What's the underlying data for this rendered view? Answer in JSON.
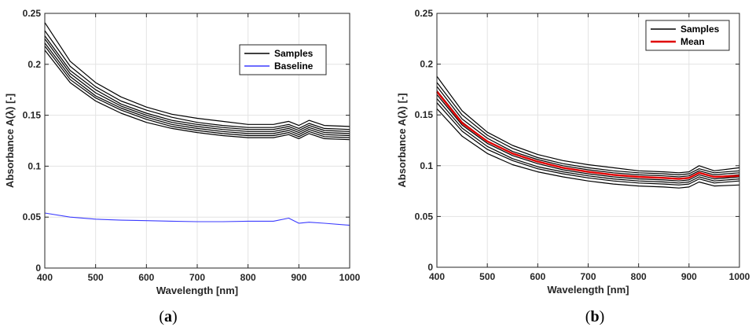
{
  "panels": [
    {
      "label_open": "(",
      "label_letter": "a",
      "label_close": ")"
    },
    {
      "label_open": "(",
      "label_letter": "b",
      "label_close": ")"
    }
  ],
  "chart_data": [
    {
      "type": "line",
      "xlabel": "Wavelength [nm]",
      "ylabel": "Absorbance A(λ) [-]",
      "xlim": [
        400,
        1000
      ],
      "ylim": [
        0,
        0.25
      ],
      "xticks": [
        400,
        500,
        600,
        700,
        800,
        900,
        1000
      ],
      "yticks": [
        0,
        0.05,
        0.1,
        0.15,
        0.2,
        0.25
      ],
      "yticklabels": [
        "0",
        "0.05",
        "0.1",
        "0.15",
        "0.2",
        "0.25"
      ],
      "grid": true,
      "legend_position": "top-right",
      "legend": [
        {
          "name": "Samples",
          "color": "#000000"
        },
        {
          "name": "Baseline",
          "color": "#3b3bff"
        }
      ],
      "x": [
        400,
        450,
        500,
        550,
        600,
        650,
        700,
        750,
        800,
        850,
        880,
        900,
        920,
        950,
        1000
      ],
      "series": [
        {
          "group": "Samples",
          "color": "#000000",
          "values": [
            0.241,
            0.203,
            0.182,
            0.168,
            0.158,
            0.151,
            0.147,
            0.144,
            0.141,
            0.141,
            0.144,
            0.14,
            0.145,
            0.14,
            0.139
          ]
        },
        {
          "group": "Samples",
          "color": "#000000",
          "values": [
            0.233,
            0.198,
            0.178,
            0.164,
            0.155,
            0.148,
            0.143,
            0.14,
            0.138,
            0.138,
            0.141,
            0.137,
            0.142,
            0.137,
            0.136
          ]
        },
        {
          "group": "Samples",
          "color": "#000000",
          "values": [
            0.228,
            0.194,
            0.175,
            0.161,
            0.152,
            0.145,
            0.141,
            0.138,
            0.136,
            0.136,
            0.139,
            0.135,
            0.14,
            0.135,
            0.134
          ]
        },
        {
          "group": "Samples",
          "color": "#000000",
          "values": [
            0.225,
            0.191,
            0.172,
            0.159,
            0.15,
            0.143,
            0.139,
            0.136,
            0.134,
            0.134,
            0.137,
            0.133,
            0.138,
            0.133,
            0.132
          ]
        },
        {
          "group": "Samples",
          "color": "#000000",
          "values": [
            0.221,
            0.188,
            0.169,
            0.157,
            0.148,
            0.141,
            0.137,
            0.134,
            0.132,
            0.132,
            0.135,
            0.131,
            0.136,
            0.131,
            0.13
          ]
        },
        {
          "group": "Samples",
          "color": "#000000",
          "values": [
            0.218,
            0.185,
            0.167,
            0.155,
            0.146,
            0.139,
            0.135,
            0.132,
            0.13,
            0.13,
            0.133,
            0.129,
            0.134,
            0.129,
            0.128
          ]
        },
        {
          "group": "Samples",
          "color": "#000000",
          "values": [
            0.214,
            0.182,
            0.164,
            0.152,
            0.143,
            0.137,
            0.133,
            0.13,
            0.128,
            0.128,
            0.131,
            0.127,
            0.132,
            0.127,
            0.126
          ]
        },
        {
          "group": "Baseline",
          "color": "#3b3bff",
          "values": [
            0.054,
            0.05,
            0.048,
            0.047,
            0.0465,
            0.046,
            0.0455,
            0.0455,
            0.046,
            0.046,
            0.049,
            0.044,
            0.045,
            0.044,
            0.042
          ]
        }
      ]
    },
    {
      "type": "line",
      "xlabel": "Wavelength [nm]",
      "ylabel": "Absorbance A(λ) [-]",
      "xlim": [
        400,
        1000
      ],
      "ylim": [
        0,
        0.25
      ],
      "xticks": [
        400,
        500,
        600,
        700,
        800,
        900,
        1000
      ],
      "yticks": [
        0,
        0.05,
        0.1,
        0.15,
        0.2,
        0.25
      ],
      "yticklabels": [
        "0",
        "0.05",
        "0.1",
        "0.15",
        "0.2",
        "0.25"
      ],
      "grid": true,
      "legend_position": "top-right",
      "legend": [
        {
          "name": "Samples",
          "color": "#000000"
        },
        {
          "name": "Mean",
          "color": "#e00000"
        }
      ],
      "x": [
        400,
        450,
        500,
        550,
        600,
        650,
        700,
        750,
        800,
        850,
        880,
        900,
        920,
        950,
        1000
      ],
      "series": [
        {
          "group": "Samples",
          "color": "#000000",
          "values": [
            0.188,
            0.154,
            0.133,
            0.12,
            0.111,
            0.105,
            0.101,
            0.098,
            0.095,
            0.094,
            0.093,
            0.094,
            0.1,
            0.095,
            0.098
          ]
        },
        {
          "group": "Samples",
          "color": "#000000",
          "values": [
            0.182,
            0.15,
            0.13,
            0.117,
            0.108,
            0.102,
            0.098,
            0.095,
            0.093,
            0.092,
            0.091,
            0.092,
            0.097,
            0.093,
            0.095
          ]
        },
        {
          "group": "Samples",
          "color": "#000000",
          "values": [
            0.178,
            0.146,
            0.127,
            0.114,
            0.106,
            0.1,
            0.096,
            0.093,
            0.091,
            0.09,
            0.089,
            0.09,
            0.095,
            0.091,
            0.093
          ]
        },
        {
          "group": "Samples",
          "color": "#000000",
          "values": [
            0.174,
            0.143,
            0.124,
            0.112,
            0.104,
            0.098,
            0.094,
            0.091,
            0.089,
            0.088,
            0.087,
            0.088,
            0.093,
            0.089,
            0.091
          ]
        },
        {
          "group": "Samples",
          "color": "#000000",
          "values": [
            0.17,
            0.14,
            0.122,
            0.11,
            0.102,
            0.096,
            0.092,
            0.089,
            0.087,
            0.086,
            0.085,
            0.086,
            0.091,
            0.087,
            0.089
          ]
        },
        {
          "group": "Samples",
          "color": "#000000",
          "values": [
            0.166,
            0.137,
            0.119,
            0.107,
            0.099,
            0.094,
            0.09,
            0.087,
            0.085,
            0.084,
            0.083,
            0.084,
            0.089,
            0.085,
            0.087
          ]
        },
        {
          "group": "Samples",
          "color": "#000000",
          "values": [
            0.162,
            0.134,
            0.116,
            0.105,
            0.097,
            0.092,
            0.088,
            0.085,
            0.083,
            0.082,
            0.081,
            0.082,
            0.087,
            0.083,
            0.085
          ]
        },
        {
          "group": "Samples",
          "color": "#000000",
          "values": [
            0.156,
            0.129,
            0.112,
            0.101,
            0.094,
            0.089,
            0.085,
            0.082,
            0.08,
            0.079,
            0.078,
            0.079,
            0.084,
            0.08,
            0.081
          ]
        },
        {
          "group": "Mean",
          "color": "#e00000",
          "values": [
            0.173,
            0.142,
            0.124,
            0.112,
            0.104,
            0.098,
            0.094,
            0.091,
            0.089,
            0.088,
            0.087,
            0.088,
            0.093,
            0.089,
            0.09
          ]
        }
      ]
    }
  ]
}
